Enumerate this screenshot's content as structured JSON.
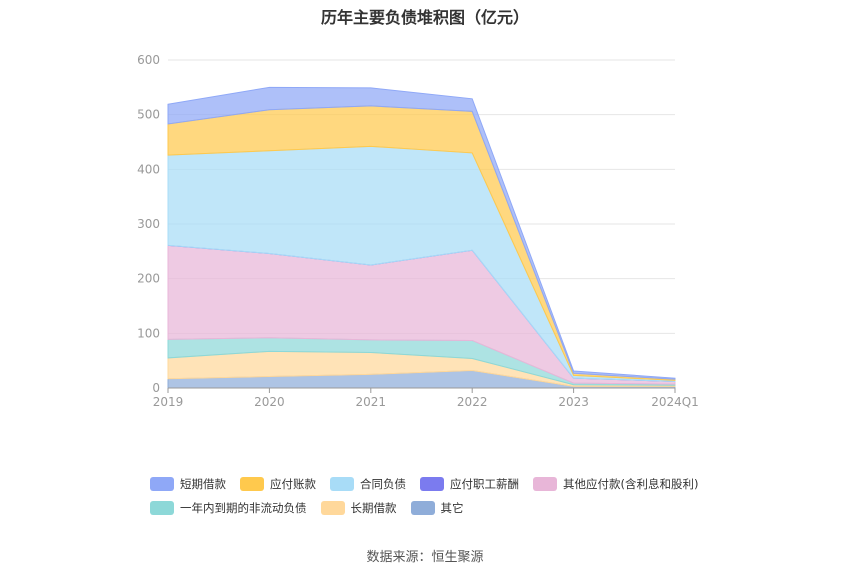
{
  "title": "历年主要负债堆积图（亿元）",
  "source": "数据来源：恒生聚源",
  "chart_data": {
    "type": "area",
    "stacked": true,
    "x": [
      "2019",
      "2020",
      "2021",
      "2022",
      "2023",
      "2024Q1"
    ],
    "ylim": [
      0,
      600
    ],
    "yticks": [
      0,
      100,
      200,
      300,
      400,
      500,
      600
    ],
    "grid": true,
    "legend_position": "bottom",
    "series": [
      {
        "name": "其它",
        "color": "#8fadd9",
        "values": [
          17,
          21,
          25,
          32,
          3,
          3
        ]
      },
      {
        "name": "长期借款",
        "color": "#ffd89b",
        "values": [
          38,
          46,
          40,
          22,
          3,
          2
        ]
      },
      {
        "name": "一年内到期的非流动负债",
        "color": "#8dd8d8",
        "values": [
          34,
          25,
          23,
          33,
          3,
          2
        ]
      },
      {
        "name": "其他应付款(含利息和股利)",
        "color": "#e8b6d8",
        "values": [
          172,
          154,
          137,
          165,
          9,
          5
        ]
      },
      {
        "name": "应付职工薪酬",
        "color": "#7b7bef",
        "values": [
          0,
          0,
          0,
          0,
          0,
          0
        ]
      },
      {
        "name": "合同负债",
        "color": "#a8dcf7",
        "values": [
          165,
          188,
          217,
          178,
          5,
          2
        ]
      },
      {
        "name": "应付账款",
        "color": "#ffc94d",
        "values": [
          57,
          75,
          74,
          76,
          4,
          2
        ]
      },
      {
        "name": "短期借款",
        "color": "#8fa8f7",
        "values": [
          36,
          41,
          33,
          23,
          4,
          2
        ]
      }
    ],
    "legend_order": [
      [
        "短期借款",
        "应付账款",
        "合同负债",
        "应付职工薪酬",
        "其他应付款(含利息和股利)"
      ],
      [
        "一年内到期的非流动负债",
        "长期借款",
        "其它"
      ]
    ]
  }
}
